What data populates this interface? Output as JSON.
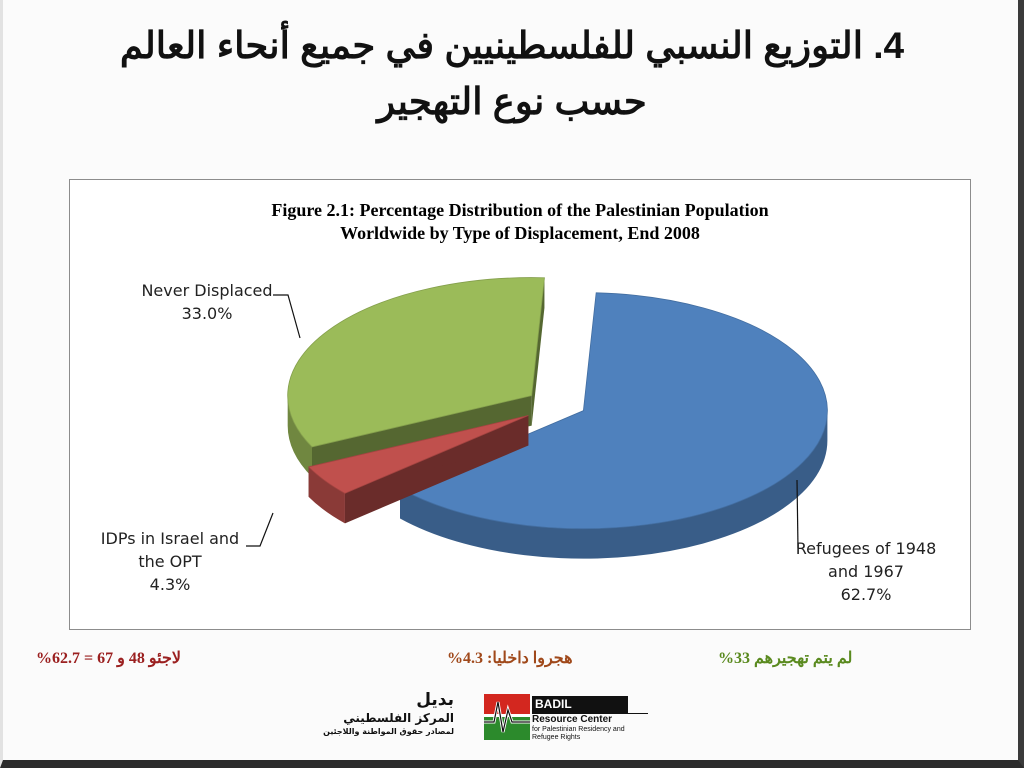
{
  "page": {
    "title_line1": "4. التوزيع النسبي للفلسطينيين في جميع أنحاء العالم",
    "title_line2": "حسب نوع التهجير"
  },
  "chart_data": {
    "type": "pie",
    "title_line1": "Figure 2.1: Percentage Distribution of the Palestinian Population",
    "title_line2": "Worldwide by Type of Displacement, End 2008",
    "slices": [
      {
        "label_line1": "Refugees of 1948",
        "label_line2": "and 1967",
        "value": 62.7,
        "value_label": "62.7%",
        "color": "#4f81bd"
      },
      {
        "label_line1": "IDPs in Israel and",
        "label_line2": "the OPT",
        "value": 4.3,
        "value_label": "4.3%",
        "color": "#c0504d"
      },
      {
        "label_line1": "Never Displaced",
        "label_line2": "",
        "value": 33.0,
        "value_label": "33.0%",
        "color": "#9bbb59"
      }
    ],
    "exploded": true,
    "three_d": true
  },
  "summary": {
    "never": "لم يتم تهجيرهم 33%",
    "idp": "هجروا داخليا: 4.3%",
    "refugees": "لاجئو 48 و 67 = 62.7%"
  },
  "logo": {
    "ar_line1": "بديل",
    "ar_line2": "المركز الفلسطيني",
    "ar_line3": "لمصادر حقوق المواطنة واللاجئين",
    "en_line1": "BADIL",
    "en_line2": "Resource Center",
    "en_line3a": "for Palestinian Residency and",
    "en_line3b": "Refugee Rights"
  },
  "colors": {
    "green_text": "#5a8a1f",
    "orange_text": "#a0491b",
    "red_text": "#9b2020"
  }
}
